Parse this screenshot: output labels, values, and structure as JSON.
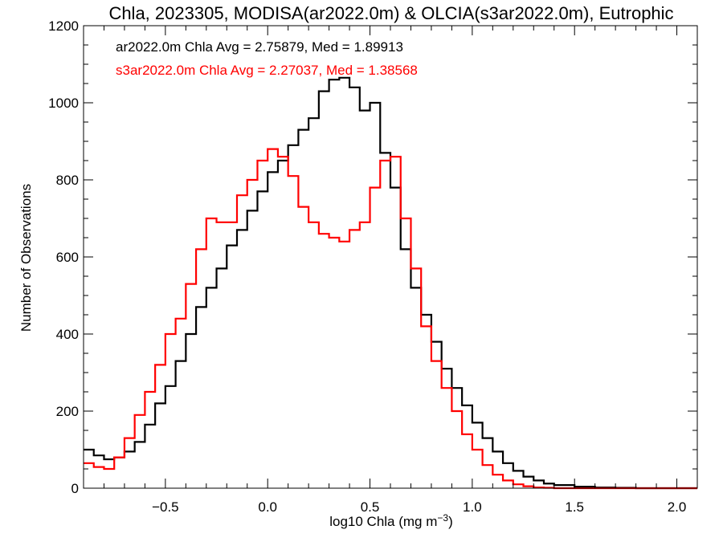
{
  "chart_data": {
    "type": "line",
    "title": "Chla, 2023305, MODISA(ar2022.0m) & OLCIA(s3ar2022.0m), Eutrophic",
    "xlabel": "log10 Chla (mg m",
    "xlabel_sup": "−3",
    "xlabel_end": ")",
    "ylabel": "Number of Observations",
    "xlim": [
      -0.9,
      2.1
    ],
    "ylim": [
      0,
      1200
    ],
    "xticks": [
      -0.5,
      0.0,
      0.5,
      1.0,
      1.5,
      2.0
    ],
    "xtick_labels": [
      "−0.5",
      "0.0",
      "0.5",
      "1.0",
      "1.5",
      "2.0"
    ],
    "yticks": [
      0,
      200,
      400,
      600,
      800,
      1000,
      1200
    ],
    "ytick_labels": [
      "0",
      "200",
      "400",
      "600",
      "800",
      "1000",
      "1200"
    ],
    "grid": false,
    "legend_position": "top-left",
    "annotations": [
      {
        "text": "ar2022.0m Chla Avg = 2.75879, Med = 1.89913",
        "color": "#000000"
      },
      {
        "text": "s3ar2022.0m Chla Avg = 2.27037, Med = 1.38568",
        "color": "#ff0000"
      }
    ],
    "series": [
      {
        "color": "#000000",
        "x": [
          -0.9,
          -0.85,
          -0.8,
          -0.75,
          -0.7,
          -0.65,
          -0.6,
          -0.55,
          -0.5,
          -0.45,
          -0.4,
          -0.35,
          -0.3,
          -0.25,
          -0.2,
          -0.15,
          -0.1,
          -0.05,
          0.0,
          0.05,
          0.1,
          0.15,
          0.2,
          0.25,
          0.3,
          0.35,
          0.4,
          0.45,
          0.5,
          0.55,
          0.6,
          0.65,
          0.7,
          0.75,
          0.8,
          0.85,
          0.9,
          0.95,
          1.0,
          1.05,
          1.1,
          1.15,
          1.2,
          1.25,
          1.3,
          1.35,
          1.4,
          1.5,
          1.6,
          1.7,
          1.8,
          1.9,
          2.0,
          2.1
        ],
        "y": [
          100,
          85,
          75,
          80,
          95,
          120,
          165,
          220,
          265,
          330,
          400,
          470,
          520,
          570,
          630,
          670,
          720,
          770,
          820,
          850,
          890,
          930,
          960,
          1030,
          1060,
          1065,
          1040,
          980,
          1000,
          870,
          780,
          620,
          520,
          450,
          380,
          310,
          260,
          215,
          170,
          130,
          95,
          65,
          45,
          30,
          20,
          12,
          8,
          4,
          2,
          1,
          0,
          0,
          0,
          0
        ]
      },
      {
        "color": "#ff0000",
        "x": [
          -0.9,
          -0.85,
          -0.8,
          -0.75,
          -0.7,
          -0.65,
          -0.6,
          -0.55,
          -0.5,
          -0.45,
          -0.4,
          -0.35,
          -0.3,
          -0.25,
          -0.2,
          -0.15,
          -0.1,
          -0.05,
          0.0,
          0.05,
          0.1,
          0.15,
          0.2,
          0.25,
          0.3,
          0.35,
          0.4,
          0.45,
          0.5,
          0.55,
          0.6,
          0.65,
          0.7,
          0.75,
          0.8,
          0.85,
          0.9,
          0.95,
          1.0,
          1.05,
          1.1,
          1.15,
          1.2,
          1.25,
          1.3,
          1.35,
          1.4,
          1.5,
          1.6,
          1.7,
          1.8,
          1.9,
          2.0,
          2.1
        ],
        "y": [
          65,
          55,
          50,
          80,
          130,
          190,
          250,
          320,
          400,
          440,
          530,
          620,
          700,
          690,
          690,
          760,
          800,
          850,
          880,
          860,
          810,
          730,
          690,
          660,
          650,
          640,
          670,
          690,
          780,
          850,
          860,
          700,
          570,
          420,
          330,
          260,
          200,
          140,
          100,
          60,
          35,
          20,
          10,
          5,
          2,
          1,
          0,
          0,
          0,
          0,
          0,
          0,
          0,
          0
        ]
      }
    ]
  }
}
